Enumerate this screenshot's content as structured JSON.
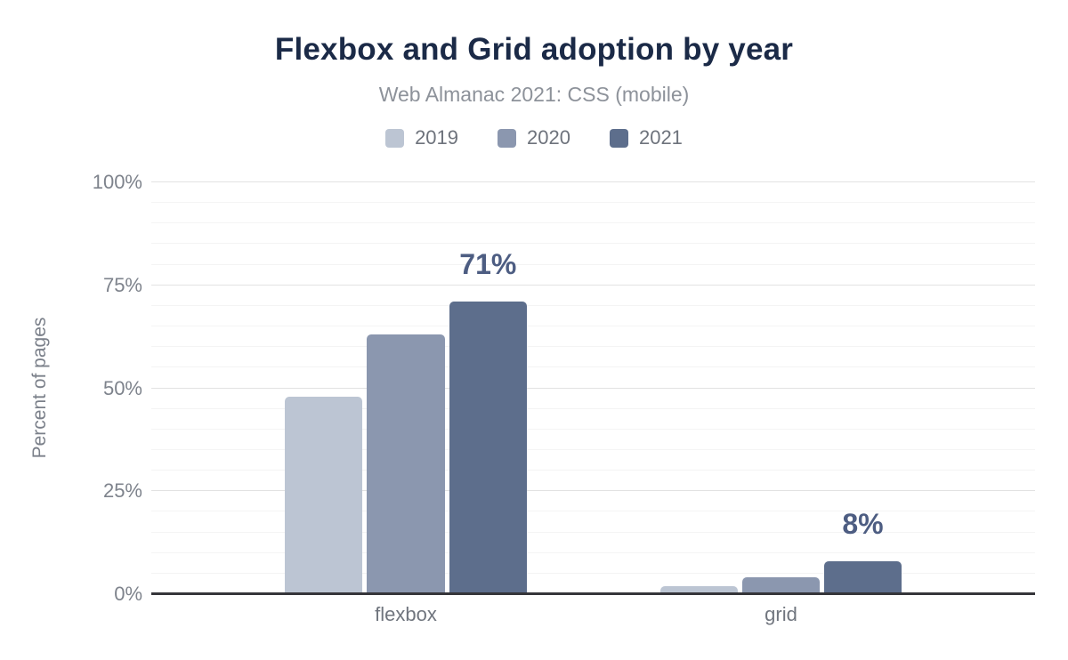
{
  "header": {
    "title": "Flexbox and Grid adoption by year",
    "subtitle": "Web Almanac 2021: CSS (mobile)"
  },
  "chart_data": {
    "type": "bar",
    "title": "Flexbox and Grid adoption by year",
    "subtitle": "Web Almanac 2021: CSS (mobile)",
    "categories": [
      "flexbox",
      "grid"
    ],
    "series": [
      {
        "name": "2019",
        "color": "#bcc5d3",
        "values": [
          48,
          2
        ]
      },
      {
        "name": "2020",
        "color": "#8b97af",
        "values": [
          63,
          4
        ]
      },
      {
        "name": "2021",
        "color": "#5d6e8c",
        "values": [
          71,
          8
        ]
      }
    ],
    "annotations": [
      {
        "category": "flexbox",
        "series": "2021",
        "text": "71%"
      },
      {
        "category": "grid",
        "series": "2021",
        "text": "8%"
      }
    ],
    "xlabel": "",
    "ylabel": "Percent of pages",
    "ylim": [
      0,
      100
    ],
    "yticks": [
      {
        "value": 0,
        "label": "0%"
      },
      {
        "value": 25,
        "label": "25%"
      },
      {
        "value": 50,
        "label": "50%"
      },
      {
        "value": 75,
        "label": "75%"
      },
      {
        "value": 100,
        "label": "100%"
      }
    ],
    "minor_grid_step": 5,
    "grid": true,
    "legend_position": "top"
  },
  "colors": {
    "title": "#1b2a47",
    "subtitle": "#8d929a",
    "legend_text": "#6e737c",
    "tick_text": "#7e838c",
    "category_text": "#70757e",
    "axis_title_text": "#7b808a",
    "annotation_text": "#4d5d82",
    "baseline": "#35353a",
    "grid_major": "#e2e2e2",
    "grid_minor": "#f4f4f4"
  }
}
